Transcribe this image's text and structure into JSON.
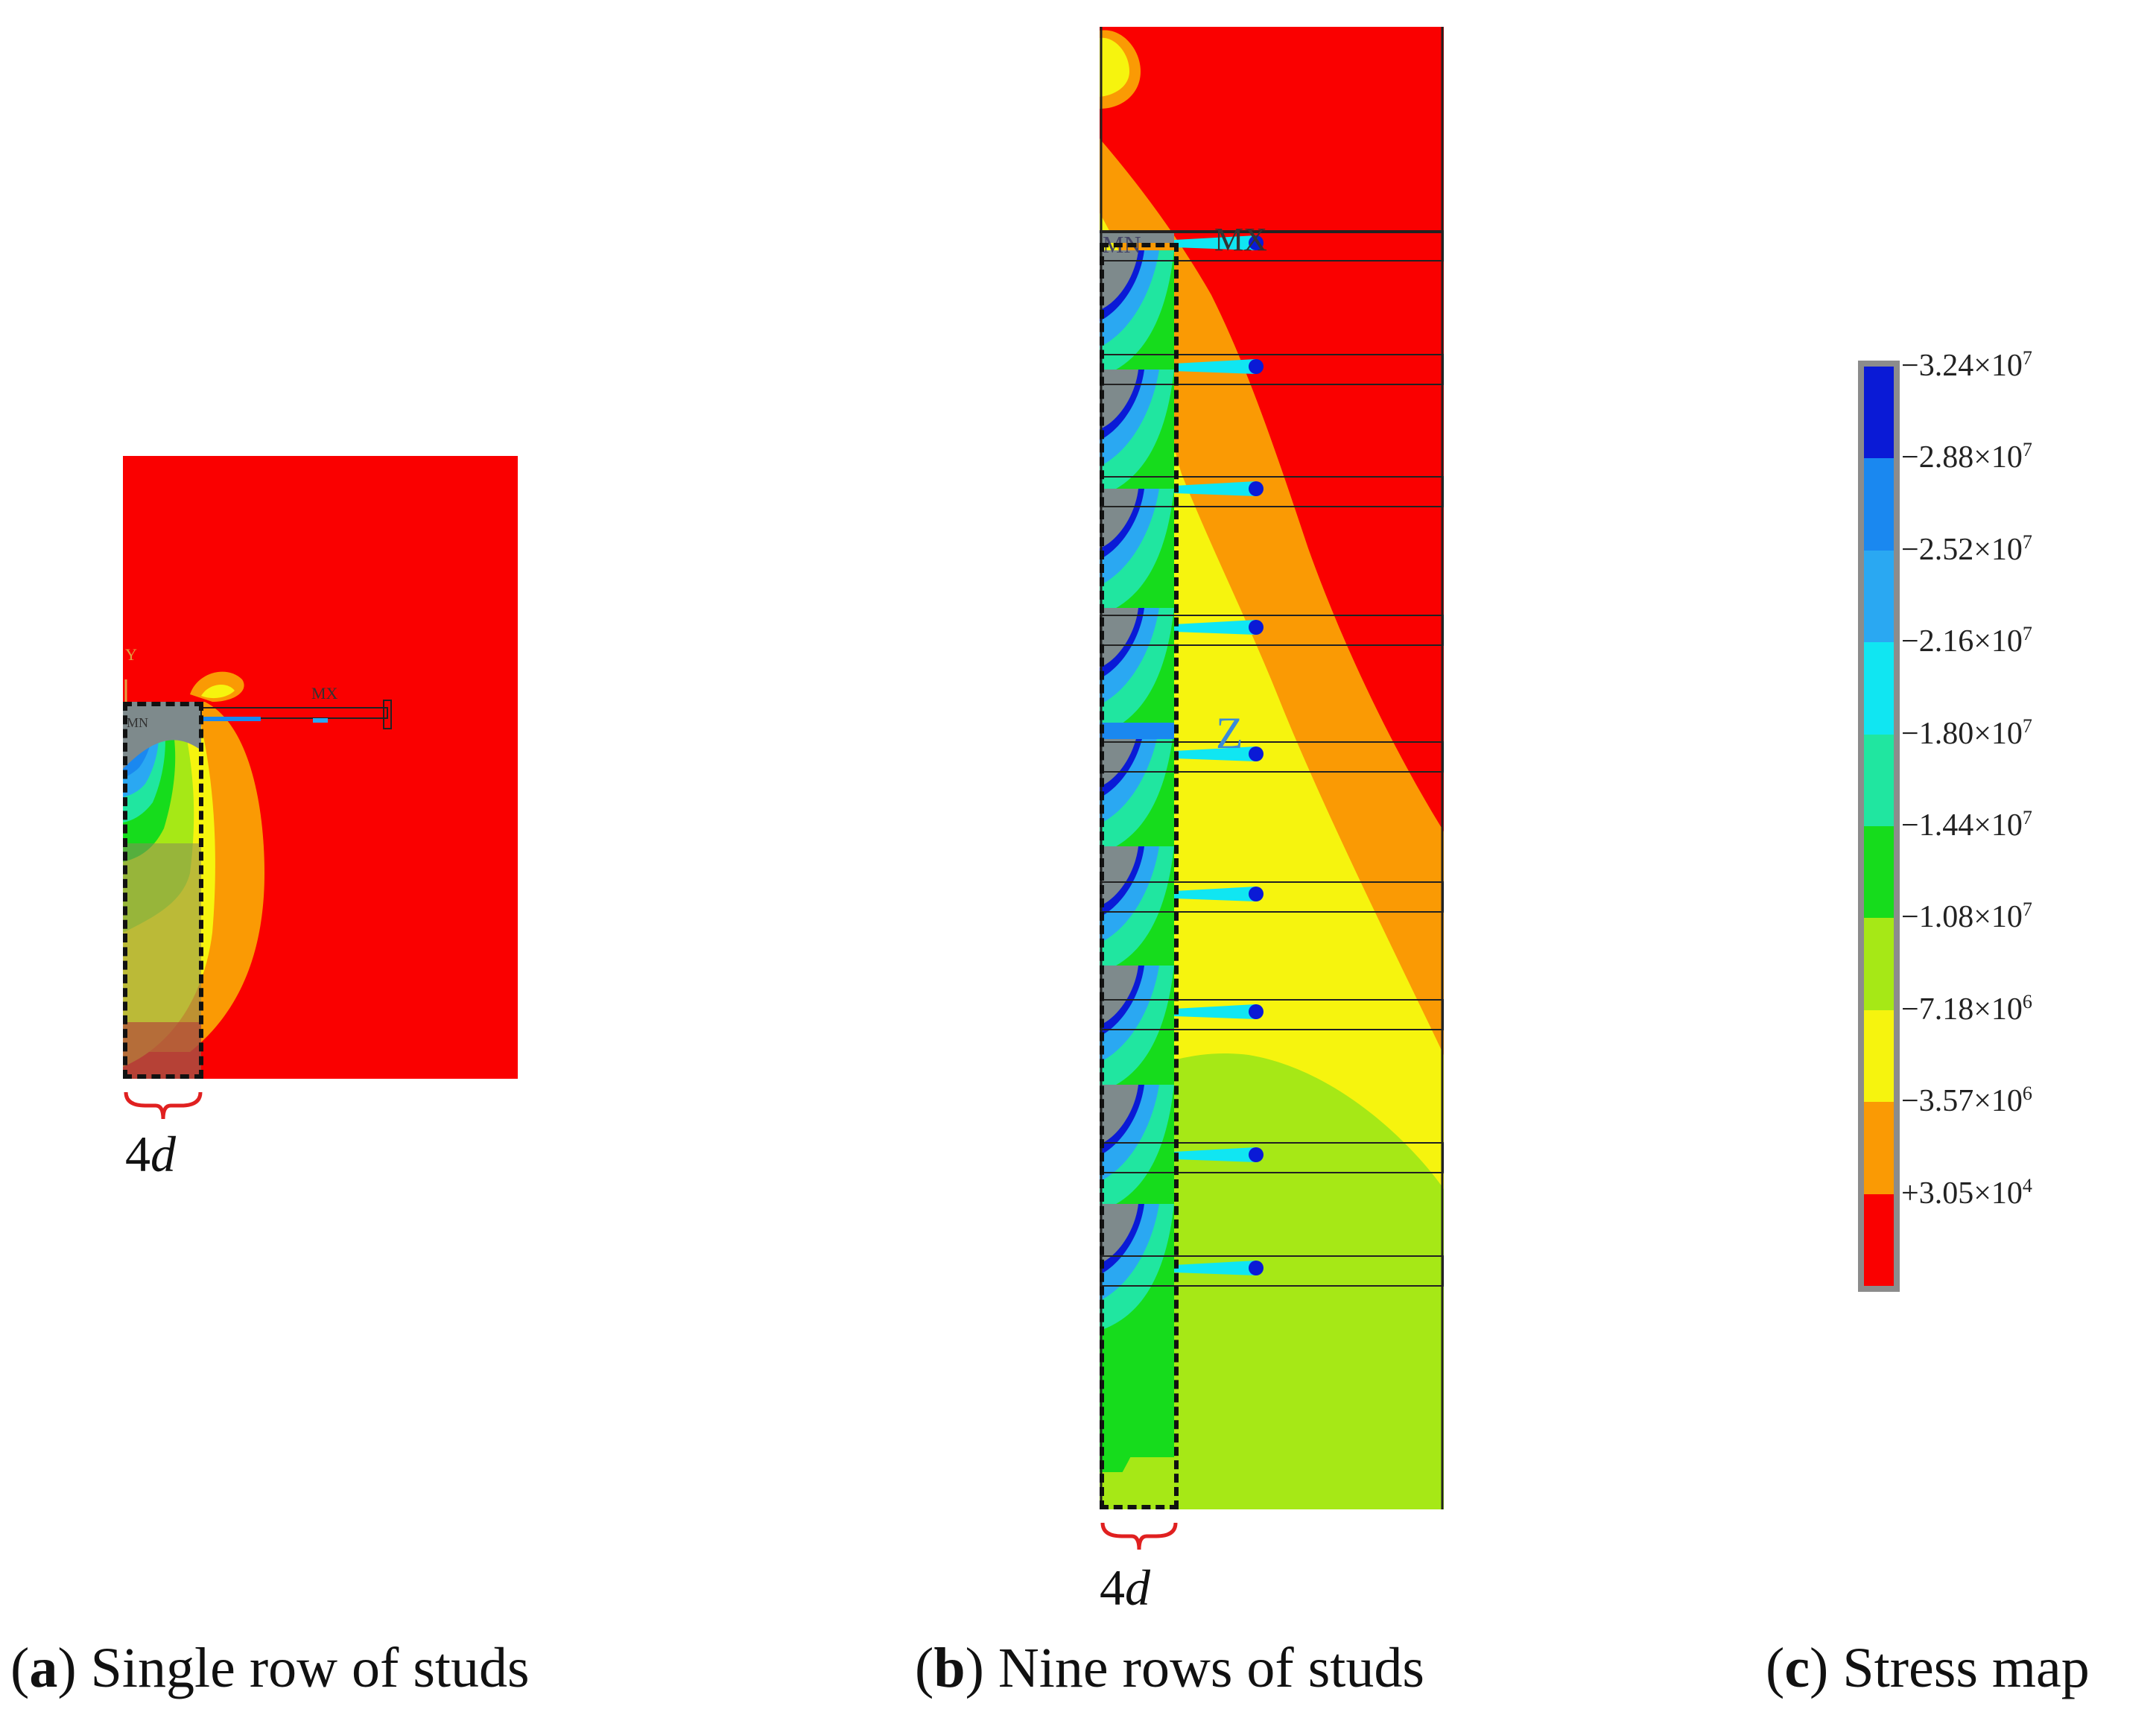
{
  "panels": {
    "a": {
      "dimension_label": {
        "value": "4",
        "variable": "d"
      },
      "annotations": {
        "mx": "MX",
        "mn": "MN",
        "axis": "Y"
      },
      "caption": {
        "letter": "a",
        "text": "Single row of studs"
      }
    },
    "b": {
      "dimension_label": {
        "value": "4",
        "variable": "d"
      },
      "annotations": {
        "mx": "MX",
        "mn": "MN",
        "axis_z": "Z"
      },
      "caption": {
        "letter": "b",
        "text": "Nine rows of studs"
      }
    },
    "c": {
      "caption": {
        "letter": "c",
        "text": "Stress map"
      }
    }
  },
  "colors": {
    "level_10": "#0a1ad6",
    "level_9": "#1a88f0",
    "level_8": "#2aa8f2",
    "level_7": "#10e6f2",
    "level_6": "#20e6a0",
    "level_5": "#16dc1c",
    "level_4": "#a6e816",
    "level_3": "#f6f40e",
    "level_2": "#fa9a04",
    "level_1": "#fa0000",
    "gray": "#7e8a8c"
  },
  "legend": {
    "title": "",
    "bands": [
      {
        "color": "#0a1ad6"
      },
      {
        "color": "#1a88f0"
      },
      {
        "color": "#2aa8f2"
      },
      {
        "color": "#10e6f2"
      },
      {
        "color": "#20e6a0"
      },
      {
        "color": "#16dc1c"
      },
      {
        "color": "#a6e816"
      },
      {
        "color": "#f6f40e"
      },
      {
        "color": "#fa9a04"
      },
      {
        "color": "#fa0000"
      }
    ],
    "ticks": [
      {
        "sign": "−",
        "mantissa": "3.24",
        "exp": "7"
      },
      {
        "sign": "−",
        "mantissa": "2.88",
        "exp": "7"
      },
      {
        "sign": "−",
        "mantissa": "2.52",
        "exp": "7"
      },
      {
        "sign": "−",
        "mantissa": "2.16",
        "exp": "7"
      },
      {
        "sign": "−",
        "mantissa": "1.80",
        "exp": "7"
      },
      {
        "sign": "−",
        "mantissa": "1.44",
        "exp": "7"
      },
      {
        "sign": "−",
        "mantissa": "1.08",
        "exp": "7"
      },
      {
        "sign": "−",
        "mantissa": "7.18",
        "exp": "6"
      },
      {
        "sign": "−",
        "mantissa": "3.57",
        "exp": "6"
      },
      {
        "sign": "+",
        "mantissa": "3.05",
        "exp": "4"
      }
    ]
  }
}
